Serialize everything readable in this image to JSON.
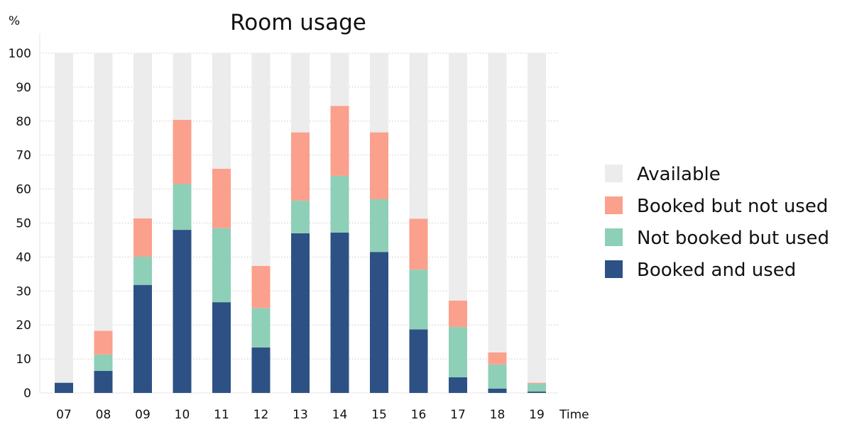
{
  "chart_data": {
    "type": "bar",
    "stacked": true,
    "title": "Room usage",
    "ylabel": "%",
    "xlabel": "Time",
    "ylim": [
      0,
      100
    ],
    "yticks": [
      0,
      10,
      20,
      30,
      40,
      50,
      60,
      70,
      80,
      90,
      100
    ],
    "categories": [
      "07",
      "08",
      "09",
      "10",
      "11",
      "12",
      "13",
      "14",
      "15",
      "16",
      "17",
      "18",
      "19"
    ],
    "series": [
      {
        "name": "Booked and used",
        "color": "#2d5185",
        "values": [
          3,
          6.5,
          31.8,
          48,
          26.7,
          13.4,
          47,
          47.2,
          41.5,
          18.7,
          4.6,
          1.3,
          0.4
        ]
      },
      {
        "name": "Not booked but used",
        "color": "#8ecfb8",
        "values": [
          0,
          4.8,
          8.3,
          13.5,
          21.8,
          11.6,
          9.6,
          16.7,
          15.5,
          17.6,
          14.8,
          7.1,
          2.3
        ]
      },
      {
        "name": "Booked but not used",
        "color": "#fba08c",
        "values": [
          0,
          7,
          11.3,
          18.9,
          17.5,
          12.4,
          20.1,
          20.6,
          19.7,
          15,
          7.8,
          3.5,
          0.3
        ]
      },
      {
        "name": "Available",
        "color": "#ececec",
        "values": [
          97,
          81.7,
          48.6,
          19.6,
          34,
          62.6,
          23.3,
          15.5,
          23.3,
          48.7,
          72.8,
          88.1,
          97
        ]
      }
    ],
    "legend": {
      "position": "right",
      "order": [
        "Available",
        "Booked but not used",
        "Not booked but used",
        "Booked and used"
      ]
    },
    "grid": {
      "y": true,
      "x": false,
      "style": "dotted"
    }
  }
}
